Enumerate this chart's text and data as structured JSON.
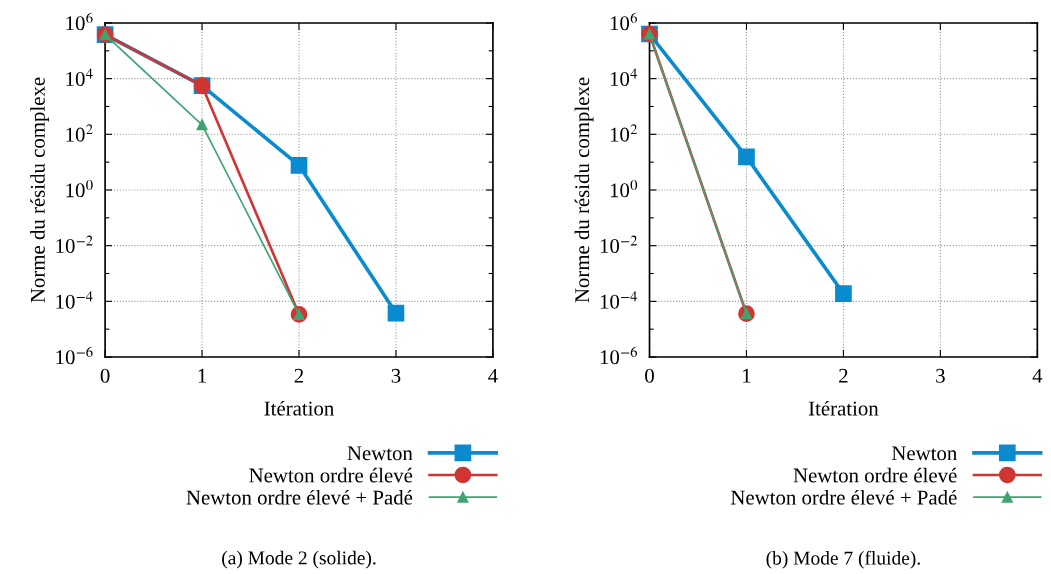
{
  "chart_data": [
    {
      "type": "line",
      "xlabel": "Itération",
      "ylabel": "Norme du résidu complexe",
      "log": true,
      "grid": true,
      "legend": "bottom right",
      "line_style": "solid",
      "xlim": [
        0,
        4
      ],
      "xticks": [
        0,
        1,
        2,
        3,
        4
      ],
      "ylim": [
        1e-06,
        1000000.0
      ],
      "yticks": [
        {
          "value": 1e-06,
          "label": "10$^{−6}$"
        },
        {
          "value": 1e-05,
          "label": null
        },
        {
          "value": 0.0001,
          "label": "10$^{−4}$"
        },
        {
          "value": 0.001,
          "label": null
        },
        {
          "value": 0.01,
          "label": "10$^{−2}$"
        },
        {
          "value": 0.1,
          "label": null
        },
        {
          "value": 1,
          "label": "10$^{0}$"
        },
        {
          "value": 10,
          "label": null
        },
        {
          "value": 100,
          "label": "10$^{2}$"
        },
        {
          "value": 1000,
          "label": null
        },
        {
          "value": 10000,
          "label": "10$^{4}$"
        },
        {
          "value": 100000,
          "label": null
        },
        {
          "value": 1000000,
          "label": "10$^{6}$"
        }
      ],
      "x": [
        0,
        1,
        2,
        3
      ],
      "series": [
        {
          "name": "Newton",
          "color": "#0a8acf",
          "marker": "square",
          "values": [
            380000,
            5600,
            7.7,
            3.8e-05
          ]
        },
        {
          "name": "Newton ordre élevé",
          "color": "#d03535",
          "marker": "circle",
          "values": [
            380000,
            5600,
            3.4e-05,
            null
          ]
        },
        {
          "name": "Newton ordre élevé + Padé",
          "color": "#3fa470",
          "marker": "triangle",
          "values": [
            380000,
            220,
            3.4e-05,
            null
          ]
        }
      ],
      "annotations": [
        "(a) Mode 2 (solide)."
      ]
    },
    {
      "type": "line",
      "xlabel": "Itération",
      "ylabel": "Norme du résidu complexe",
      "log": true,
      "grid": true,
      "legend": "bottom right",
      "line_style": "solid",
      "xlim": [
        0,
        4
      ],
      "xticks": [
        0,
        1,
        2,
        3,
        4
      ],
      "ylim": [
        1e-06,
        1000000.0
      ],
      "yticks": [
        {
          "value": 1e-06,
          "label": "10$^{−6}$"
        },
        {
          "value": 1e-05,
          "label": null
        },
        {
          "value": 0.0001,
          "label": "10$^{−4}$"
        },
        {
          "value": 0.001,
          "label": null
        },
        {
          "value": 0.01,
          "label": "10$^{−2}$"
        },
        {
          "value": 0.1,
          "label": null
        },
        {
          "value": 1,
          "label": "10$^{0}$"
        },
        {
          "value": 10,
          "label": null
        },
        {
          "value": 100,
          "label": "10$^{2}$"
        },
        {
          "value": 1000,
          "label": null
        },
        {
          "value": 10000,
          "label": "10$^{4}$"
        },
        {
          "value": 100000,
          "label": null
        },
        {
          "value": 1000000,
          "label": "10$^{6}$"
        }
      ],
      "x": [
        0,
        1,
        2
      ],
      "series": [
        {
          "name": "Newton",
          "color": "#0a8acf",
          "marker": "square",
          "values": [
            400000,
            15.5,
            0.00019
          ]
        },
        {
          "name": "Newton ordre élevé",
          "color": "#d03535",
          "marker": "circle",
          "values": [
            400000,
            3.6e-05,
            null
          ]
        },
        {
          "name": "Newton ordre élevé + Padé",
          "color": "#3fa470",
          "marker": "triangle",
          "values": [
            400000,
            3.6e-05,
            null
          ]
        }
      ],
      "annotations": [
        "(b) Mode 7 (fluide)."
      ]
    }
  ]
}
